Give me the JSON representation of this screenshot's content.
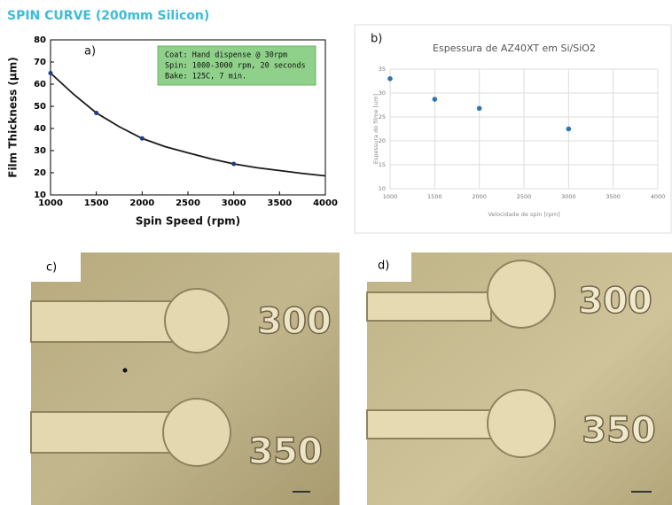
{
  "chart_data": [
    {
      "type": "scatter",
      "title": "SPIN CURVE (200mm Silicon)",
      "panel_label": "a)",
      "annotation": [
        "Coat: Hand dispense @ 30rpm",
        "Spin: 1000-3000 rpm, 20 seconds",
        "Bake: 125C, 7 min."
      ],
      "x_label": "Spin Speed (rpm)",
      "y_label": "Film Thickness (µm)",
      "xlim": [
        1000,
        4000
      ],
      "xticks": [
        1000,
        1500,
        2000,
        2500,
        3000,
        3500,
        4000
      ],
      "ylim": [
        10,
        80
      ],
      "yticks": [
        10,
        20,
        30,
        40,
        50,
        60,
        70,
        80
      ],
      "grid": false,
      "series": [
        {
          "style": "line",
          "color": "#1a1a1a",
          "x": [
            1000,
            1250,
            1500,
            1750,
            2000,
            2250,
            2500,
            2750,
            3000,
            3250,
            3500,
            3750,
            4000
          ],
          "values": [
            65,
            55.5,
            47,
            40.8,
            35.5,
            31.8,
            29,
            26.3,
            24,
            22.3,
            21,
            19.7,
            18.6
          ]
        },
        {
          "style": "markers",
          "color": "#1f3a8a",
          "x": [
            1000,
            1500,
            2000,
            3000
          ],
          "values": [
            65,
            47,
            35.5,
            24
          ]
        }
      ]
    },
    {
      "type": "scatter",
      "title": "Espessura de AZ40XT em Si/SiO2",
      "panel_label": "b)",
      "x_label": "Velocidade de spin [rpm]",
      "y_label": "Espessura do filme [um]",
      "xlim": [
        1000,
        4000
      ],
      "xticks": [
        1000,
        1500,
        2000,
        2500,
        3000,
        3500,
        4000
      ],
      "ylim": [
        10,
        35
      ],
      "yticks": [
        10,
        15,
        20,
        25,
        30,
        35
      ],
      "grid": true,
      "series": [
        {
          "style": "markers",
          "color": "#2e75b6",
          "x": [
            1000,
            1500,
            2000,
            3000
          ],
          "values": [
            33,
            28.7,
            26.8,
            22.5
          ]
        }
      ]
    }
  ],
  "images": [
    {
      "panel_label": "c)",
      "texts": [
        "300",
        "350"
      ]
    },
    {
      "panel_label": "d)",
      "texts": [
        "300",
        "350"
      ]
    }
  ]
}
